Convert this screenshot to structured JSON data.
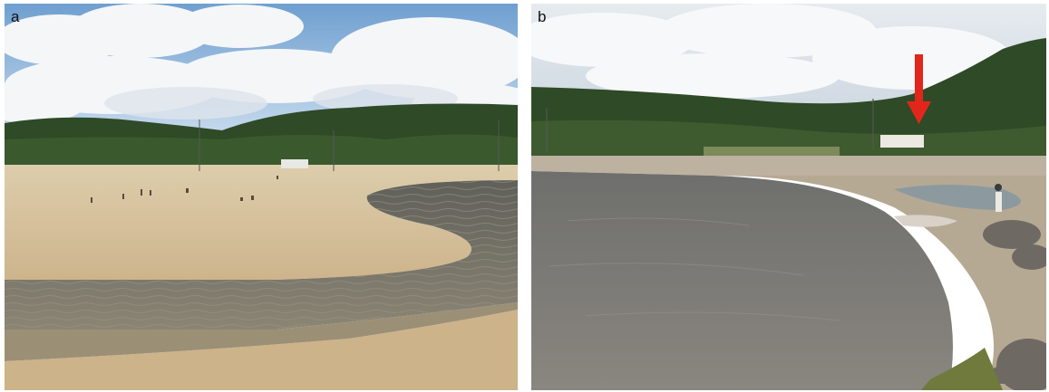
{
  "figure": {
    "panels": [
      {
        "label": "a",
        "scene": "sandy-beach-with-river-mouth-channel"
      },
      {
        "label": "b",
        "scene": "river-mouth-with-marked-building"
      }
    ],
    "annotation": {
      "icon": "arrow-down-icon",
      "color": "#e3261b"
    }
  }
}
